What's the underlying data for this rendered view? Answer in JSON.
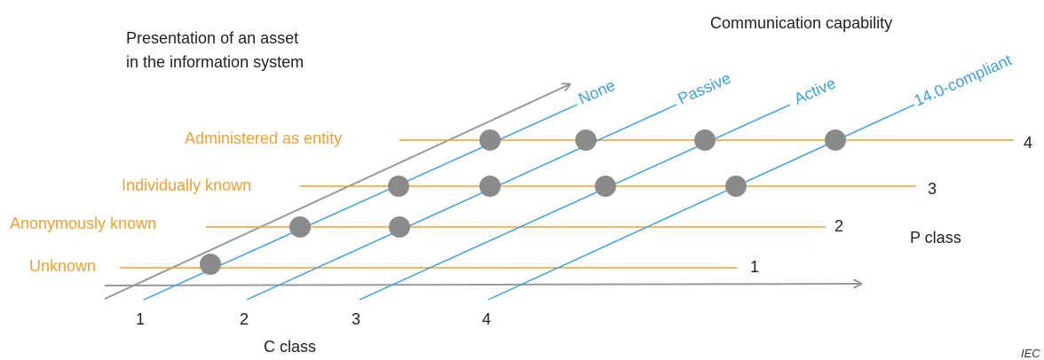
{
  "title_left": [
    "Presentation of an asset",
    "in the information system"
  ],
  "title_right": "Communication capability",
  "p_levels": [
    {
      "label": "Unknown",
      "number": "1"
    },
    {
      "label": "Anonymously known",
      "number": "2"
    },
    {
      "label": "Individually known",
      "number": "3"
    },
    {
      "label": "Administered as entity",
      "number": "4"
    }
  ],
  "c_levels": [
    {
      "label": "None",
      "number": "1"
    },
    {
      "label": "Passive",
      "number": "2"
    },
    {
      "label": "Active",
      "number": "3"
    },
    {
      "label": "14.0-compliant",
      "number": "4"
    }
  ],
  "p_axis_label": "P class",
  "c_axis_label": "C class",
  "watermark": "IEC",
  "colors": {
    "orange": "#f0a030",
    "blue": "#3aa0e0",
    "axis": "#999999",
    "dot": "#8a8a8a",
    "text": "#222222"
  }
}
